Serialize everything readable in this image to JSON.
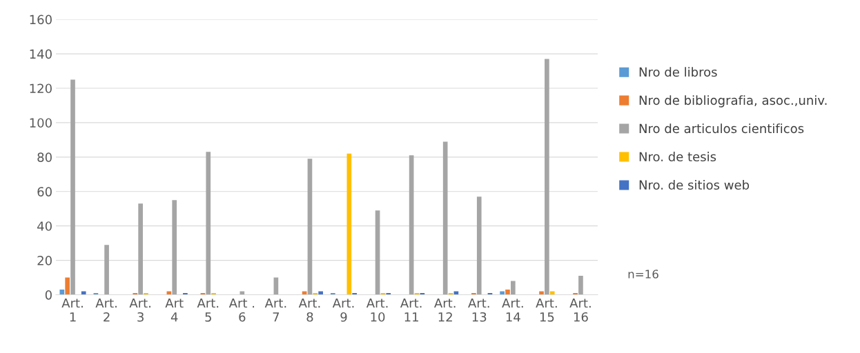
{
  "chart_data": {
    "type": "bar",
    "categories": [
      "Art.\n1",
      "Art.\n2",
      "Art.\n3",
      "Art\n4",
      "Art.\n5",
      "Art .\n6",
      "Art.\n7",
      "Art.\n8",
      "Art.\n9",
      "Art.\n10",
      "Art.\n11",
      "Art.\n12",
      "Art.\n13",
      "Art.\n14",
      "Art.\n15",
      "Art.\n16"
    ],
    "series": [
      {
        "name": "Nro de libros",
        "color": "#5b9bd5",
        "values": [
          3,
          1,
          0,
          0,
          0,
          0,
          0,
          0,
          1,
          0,
          0,
          0,
          0,
          2,
          0,
          0
        ]
      },
      {
        "name": "Nro de bibliografia, asoc.,univ.",
        "color": "#ed7d31",
        "values": [
          10,
          0,
          1,
          2,
          1,
          0,
          0,
          2,
          0,
          0,
          0,
          0,
          1,
          3,
          2,
          1
        ]
      },
      {
        "name": "Nro de articulos cientificos",
        "color": "#a5a5a5",
        "values": [
          125,
          29,
          53,
          55,
          83,
          2,
          10,
          79,
          0,
          49,
          81,
          89,
          57,
          8,
          137,
          11
        ]
      },
      {
        "name": "Nro. de tesis",
        "color": "#ffc000",
        "values": [
          0,
          0,
          1,
          0,
          1,
          0,
          0,
          1,
          82,
          1,
          1,
          1,
          0,
          0,
          2,
          0
        ]
      },
      {
        "name": "Nro. de sitios web",
        "color": "#4472c4",
        "values": [
          2,
          0,
          0,
          1,
          0,
          0,
          0,
          2,
          1,
          1,
          1,
          2,
          1,
          0,
          0,
          0
        ]
      }
    ],
    "ylim": [
      0,
      160
    ],
    "yticks": [
      0,
      20,
      40,
      60,
      80,
      100,
      120,
      140,
      160
    ],
    "grid": "y",
    "legend": "right",
    "annotations": [
      "n=16"
    ]
  }
}
